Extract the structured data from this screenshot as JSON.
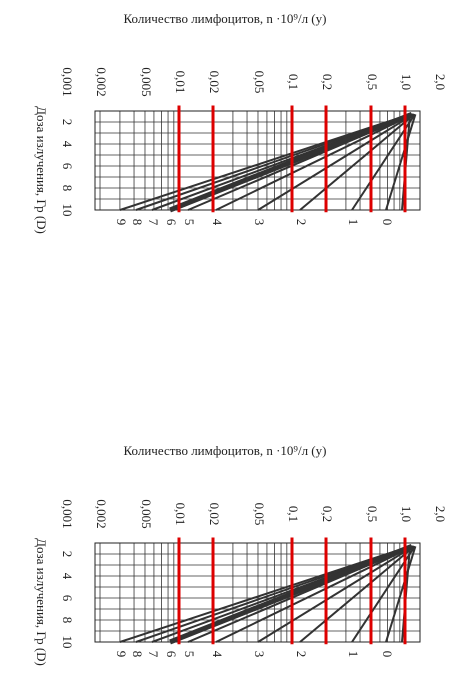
{
  "panels": [
    {
      "title": "Количество лимфоцитов, n ·10⁹/л (y)",
      "x_labels": [
        "0,001",
        "0,002",
        "0,005",
        "0,01",
        "0,02",
        "0,05",
        "0,1",
        "0,2",
        "0,5",
        "1,0",
        "2,0"
      ],
      "y_label": "Доза излучения, Гр (D)",
      "y_labels": [
        "2",
        "4",
        "6",
        "8",
        "10"
      ],
      "curve_labels": [
        "9",
        "8",
        "7",
        "6",
        "5",
        "4",
        "3",
        "2",
        "1",
        "0"
      ]
    },
    {
      "title": "Количество лимфоцитов, n ·10⁹/л (y)",
      "x_labels": [
        "0,001",
        "0,002",
        "0,005",
        "0,01",
        "0,02",
        "0,05",
        "0,1",
        "0,2",
        "0,5",
        "1,0",
        "2,0"
      ],
      "y_label": "Доза излучения, Гр (D)",
      "y_labels": [
        "2",
        "4",
        "6",
        "8",
        "10"
      ],
      "curve_labels": [
        "9",
        "8",
        "7",
        "6",
        "5",
        "4",
        "3",
        "2",
        "1",
        "0"
      ]
    }
  ]
}
